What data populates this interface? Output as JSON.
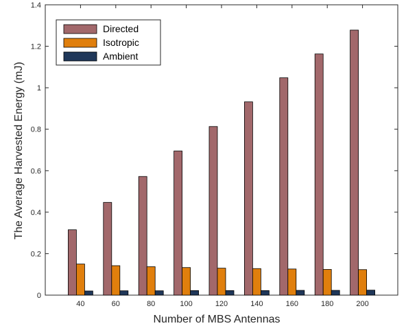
{
  "chart_data": {
    "type": "bar",
    "title": "",
    "xlabel": "Number of MBS Antennas",
    "ylabel": "The Average Harvested Energy (mJ)",
    "categories": [
      "40",
      "60",
      "80",
      "100",
      "120",
      "140",
      "160",
      "180",
      "200"
    ],
    "series": [
      {
        "name": "Directed",
        "color": "#a2686b",
        "values": [
          0.315,
          0.447,
          0.572,
          0.695,
          0.813,
          0.932,
          1.048,
          1.163,
          1.278
        ]
      },
      {
        "name": "Isotropic",
        "color": "#e07f0d",
        "values": [
          0.15,
          0.142,
          0.137,
          0.133,
          0.13,
          0.128,
          0.126,
          0.124,
          0.123
        ]
      },
      {
        "name": "Ambient",
        "color": "#1f3759",
        "values": [
          0.02,
          0.021,
          0.021,
          0.022,
          0.022,
          0.022,
          0.023,
          0.023,
          0.024
        ]
      }
    ],
    "ylim": [
      0,
      1.4
    ],
    "yticks": [
      "0",
      "0.2",
      "0.4",
      "0.6",
      "0.8",
      "1",
      "1.2",
      "1.4"
    ],
    "legend_position": "top-left",
    "grid": false
  }
}
